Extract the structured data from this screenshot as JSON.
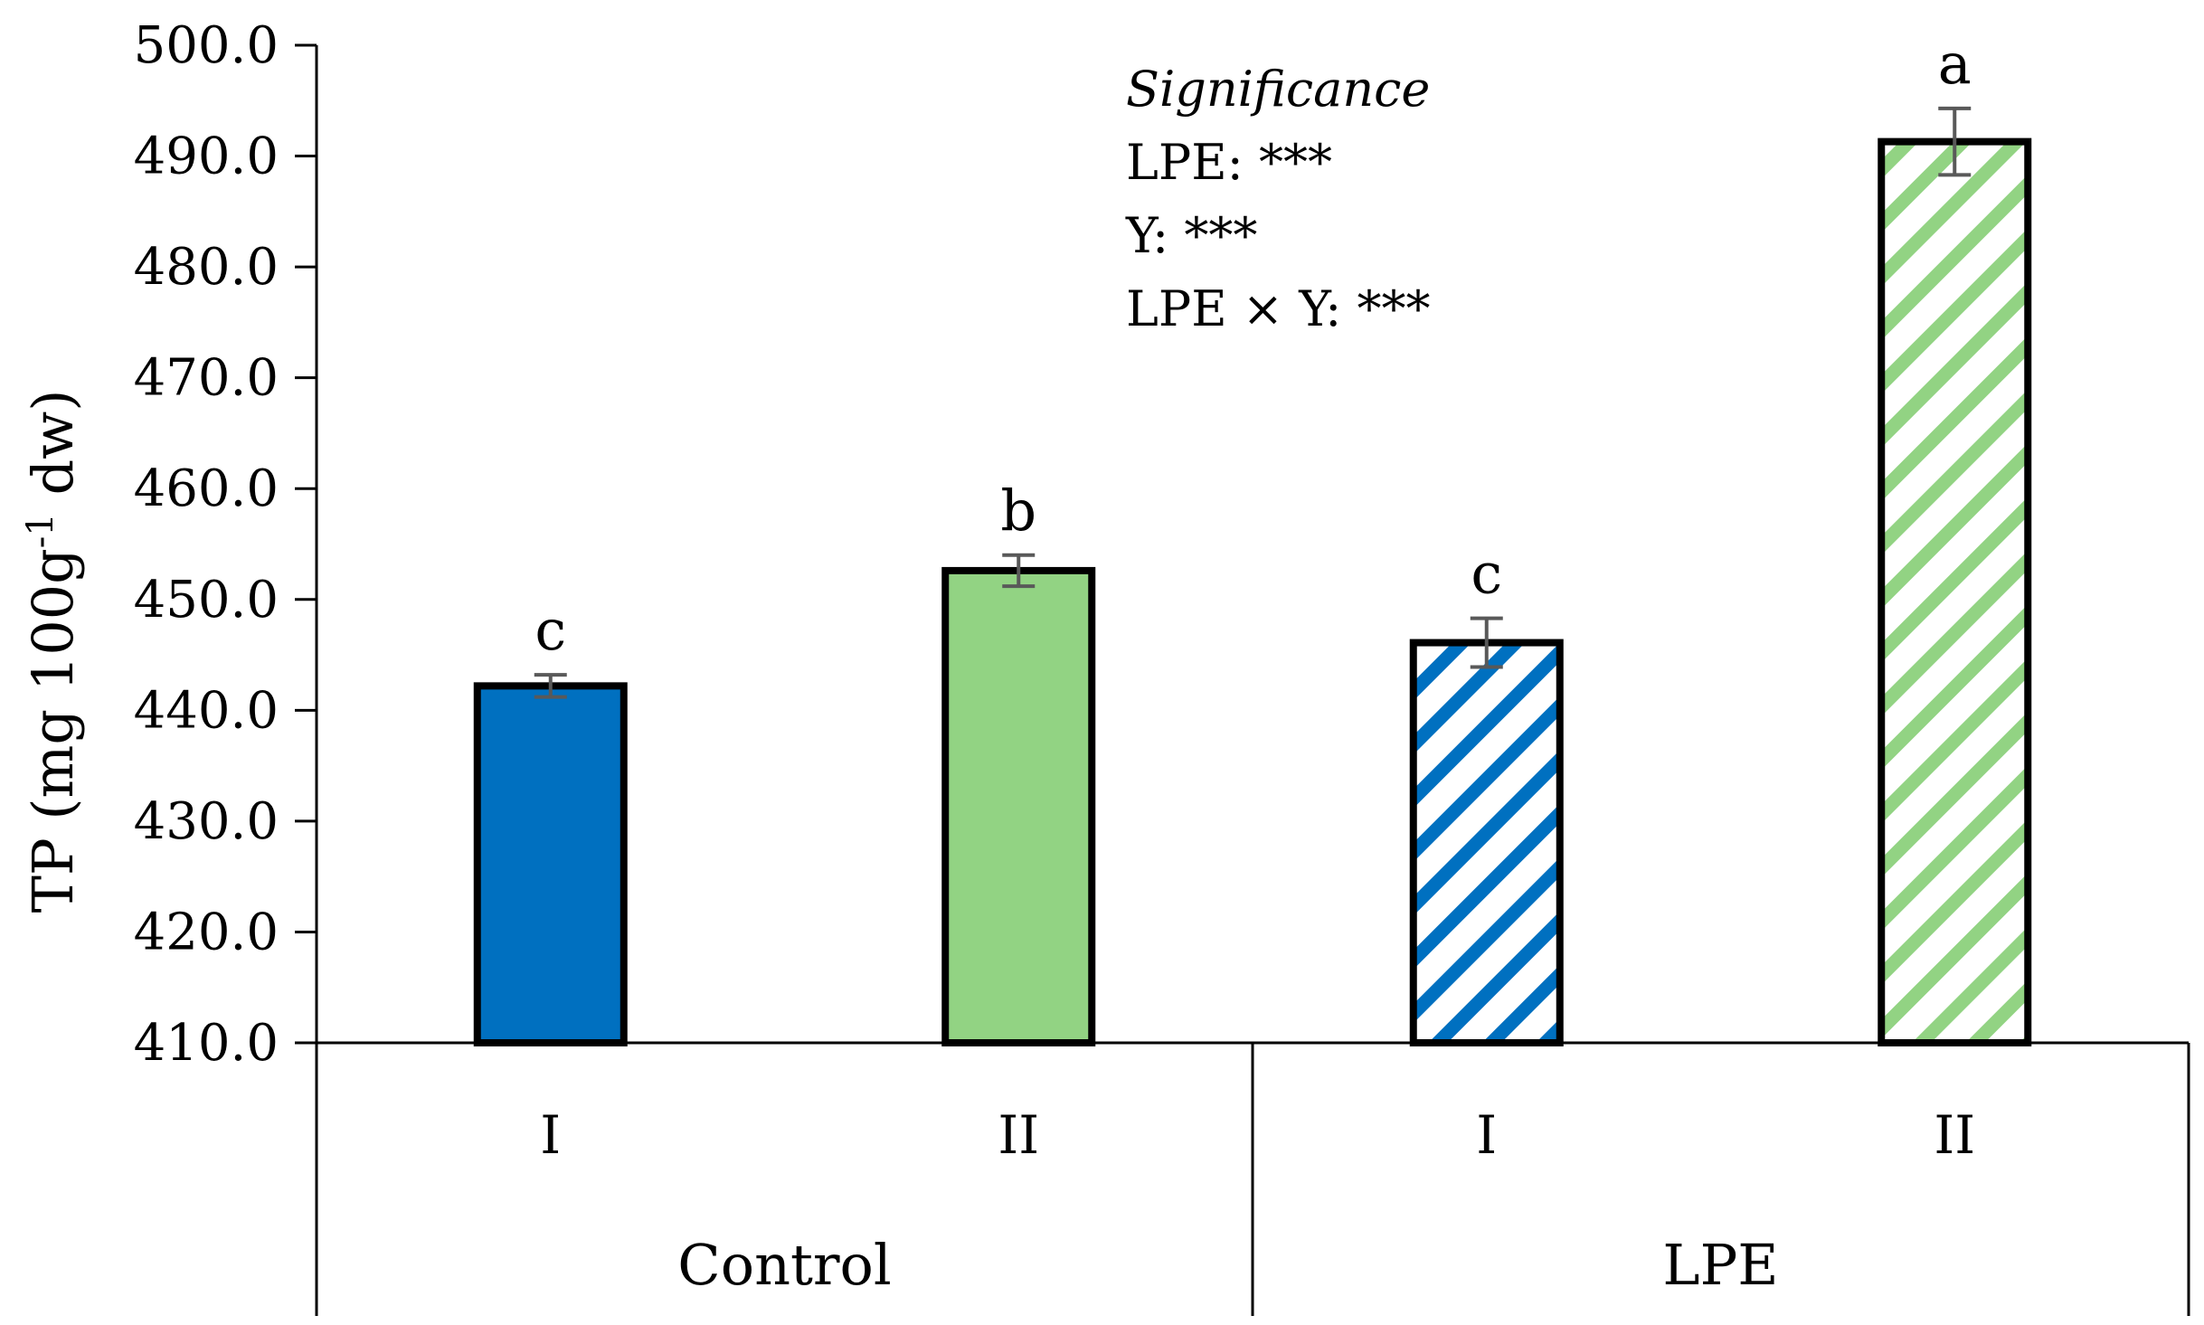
{
  "chart_data": {
    "type": "bar",
    "title": "",
    "ylabel_main": "TP (mg 100g",
    "ylabel_sup": "-1",
    "ylabel_tail": " dw)",
    "xlabel": "",
    "ylim": [
      410,
      500
    ],
    "yticks": [
      "410.0",
      "420.0",
      "430.0",
      "440.0",
      "450.0",
      "460.0",
      "470.0",
      "480.0",
      "490.0",
      "500.0"
    ],
    "grid": false,
    "groups": [
      {
        "label": "Control",
        "size": 2
      },
      {
        "label": "LPE",
        "size": 2
      }
    ],
    "bars": [
      {
        "category": "I",
        "group": "Control",
        "value": 442.2,
        "error": 1.0,
        "significance": "c",
        "color": "#0070C0",
        "pattern": "solid"
      },
      {
        "category": "II",
        "group": "Control",
        "value": 452.6,
        "error": 1.4,
        "significance": "b",
        "color": "#92D383",
        "pattern": "solid"
      },
      {
        "category": "I",
        "group": "LPE",
        "value": 446.1,
        "error": 2.2,
        "significance": "c",
        "color": "#0070C0",
        "pattern": "striped"
      },
      {
        "category": "II",
        "group": "LPE",
        "value": 491.3,
        "error": 3.0,
        "significance": "a",
        "color": "#92D383",
        "pattern": "striped"
      }
    ],
    "annotation": {
      "title": "Significance",
      "lines": [
        "LPE: ***",
        "Y: ***",
        "LPE × Y: ***"
      ]
    }
  }
}
